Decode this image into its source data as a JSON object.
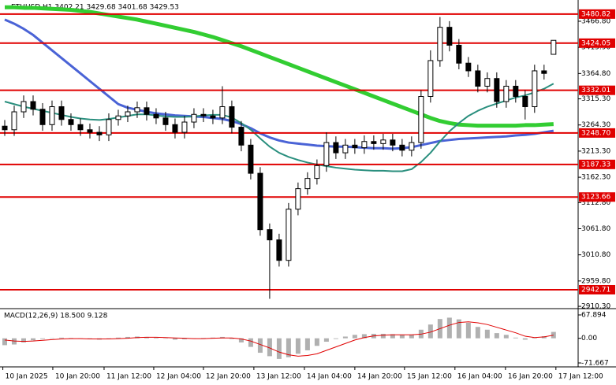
{
  "chart_data": {
    "type": "candlestick",
    "title": "ETHUSD,H1 3402.21 3429.68 3401.68 3429.53",
    "xlim": [
      -0.5,
      60.6
    ],
    "xticks": [
      {
        "value": -0.2,
        "label": "10 Jan 2025"
      },
      {
        "value": 5.08,
        "label": "10 Jan 20:00"
      },
      {
        "value": 10.5,
        "label": "11 Jan 12:00"
      },
      {
        "value": 15.75,
        "label": "12 Jan 04:00"
      },
      {
        "value": 21,
        "label": "12 Jan 20:00"
      },
      {
        "value": 26.33,
        "label": "13 Jan 12:00"
      },
      {
        "value": 31.67,
        "label": "14 Jan 04:00"
      },
      {
        "value": 37,
        "label": "14 Jan 20:00"
      },
      {
        "value": 42.25,
        "label": "15 Jan 12:00"
      },
      {
        "value": 47.58,
        "label": "16 Jan 04:00"
      },
      {
        "value": 52.92,
        "label": "16 Jan 20:00"
      },
      {
        "value": 58.25,
        "label": "17 Jan 12:00"
      }
    ],
    "ylim": [
      2905.8,
      3505.2
    ],
    "yticks": [
      {
        "value": 3466.8,
        "label": "3466.80"
      },
      {
        "value": 3415.9,
        "label": "3415.90"
      },
      {
        "value": 3364.8,
        "label": "3364.80"
      },
      {
        "value": 3315.3,
        "label": "3315.30"
      },
      {
        "value": 3264.3,
        "label": "3264.30"
      },
      {
        "value": 3213.3,
        "label": "3213.30"
      },
      {
        "value": 3162.3,
        "label": "3162.30"
      },
      {
        "value": 3112.8,
        "label": "3112.80"
      },
      {
        "value": 3061.8,
        "label": "3061.80"
      },
      {
        "value": 3010.8,
        "label": "3010.80"
      },
      {
        "value": 2959.8,
        "label": "2959.80"
      },
      {
        "value": 2910.3,
        "label": "2910.30"
      }
    ],
    "levels": [
      3480.82,
      3424.05,
      3332.01,
      {
        "value": 3248.7,
        "label": "3248.70"
      },
      3187.33,
      3123.66,
      2942.71
    ],
    "level_color": "#e00000",
    "up_color": "#ffffff",
    "down_color": "#000000",
    "open": [
      3262,
      3255,
      3290,
      3310,
      3295,
      3265,
      3300,
      3275,
      3265,
      3255,
      3250,
      3245,
      3275,
      3282,
      3290,
      3298,
      3285,
      3278,
      3265,
      3250,
      3270,
      3285,
      3282,
      3278,
      3300,
      3260,
      3225,
      3170,
      3060,
      3040,
      3000,
      3100,
      3140,
      3160,
      3185,
      3230,
      3210,
      3225,
      3220,
      3232,
      3228,
      3235,
      3225,
      3215,
      3230,
      3320,
      3390,
      3455,
      3420,
      3385,
      3370,
      3340,
      3355,
      3310,
      3340,
      3320,
      3300,
      3370,
      3402.21
    ],
    "high": [
      3274,
      3302,
      3322,
      3322,
      3307,
      3312,
      3312,
      3287,
      3277,
      3267,
      3262,
      3287,
      3294,
      3302,
      3310,
      3310,
      3297,
      3290,
      3277,
      3282,
      3297,
      3297,
      3294,
      3340,
      3312,
      3272,
      3237,
      3182,
      3072,
      3052,
      3112,
      3152,
      3172,
      3197,
      3250,
      3242,
      3237,
      3237,
      3244,
      3244,
      3247,
      3247,
      3237,
      3242,
      3332,
      3410,
      3475,
      3467,
      3432,
      3397,
      3382,
      3367,
      3367,
      3352,
      3352,
      3332,
      3382,
      3382,
      3429.68
    ],
    "low": [
      3243,
      3243,
      3278,
      3283,
      3253,
      3253,
      3263,
      3253,
      3243,
      3238,
      3233,
      3233,
      3263,
      3270,
      3278,
      3273,
      3266,
      3253,
      3238,
      3238,
      3258,
      3270,
      3266,
      3266,
      3248,
      3213,
      3158,
      3048,
      2925,
      2988,
      2988,
      3088,
      3128,
      3148,
      3173,
      3198,
      3198,
      3208,
      3208,
      3216,
      3216,
      3213,
      3203,
      3203,
      3218,
      3308,
      3378,
      3408,
      3373,
      3358,
      3328,
      3328,
      3298,
      3298,
      3308,
      3275,
      3288,
      3353,
      3401.68
    ],
    "close": [
      3255,
      3290,
      3310,
      3295,
      3265,
      3300,
      3275,
      3265,
      3255,
      3250,
      3245,
      3275,
      3282,
      3290,
      3298,
      3285,
      3278,
      3265,
      3250,
      3270,
      3285,
      3282,
      3278,
      3300,
      3260,
      3225,
      3170,
      3060,
      3040,
      3000,
      3100,
      3140,
      3160,
      3185,
      3230,
      3210,
      3225,
      3220,
      3232,
      3228,
      3235,
      3225,
      3215,
      3230,
      3320,
      3390,
      3455,
      3420,
      3385,
      3370,
      3340,
      3355,
      3310,
      3340,
      3320,
      3300,
      3370,
      3365,
      3429.53
    ],
    "moving_averages": [
      {
        "color": "#32cd32",
        "width": 5,
        "values": [
          3494,
          3494,
          3493,
          3493,
          3492,
          3491,
          3490,
          3489,
          3487,
          3485,
          3482,
          3479,
          3476,
          3473,
          3470,
          3466,
          3462,
          3458,
          3454,
          3450,
          3446,
          3441,
          3436,
          3430,
          3424,
          3418,
          3411,
          3404,
          3397,
          3390,
          3383,
          3376,
          3369,
          3362,
          3355,
          3348,
          3341,
          3334,
          3327,
          3320,
          3313,
          3306,
          3299,
          3292,
          3285,
          3278,
          3272,
          3268,
          3265,
          3264,
          3263,
          3263,
          3263,
          3263,
          3263,
          3264,
          3264,
          3265,
          3266
        ]
      },
      {
        "color": "#4a63d6",
        "width": 3,
        "values": [
          3470,
          3462,
          3452,
          3440,
          3425,
          3410,
          3395,
          3380,
          3365,
          3350,
          3335,
          3320,
          3305,
          3298,
          3294,
          3290,
          3287,
          3285,
          3283,
          3282,
          3281,
          3280,
          3278,
          3276,
          3272,
          3266,
          3258,
          3248,
          3240,
          3234,
          3230,
          3228,
          3226,
          3224,
          3223,
          3222,
          3222,
          3221,
          3220,
          3219,
          3219,
          3218,
          3219,
          3221,
          3225,
          3229,
          3233,
          3235,
          3237,
          3238,
          3239,
          3240,
          3241,
          3242,
          3244,
          3245,
          3247,
          3250,
          3253
        ]
      },
      {
        "color": "#2a8f7e",
        "width": 2,
        "values": [
          3310,
          3305,
          3300,
          3296,
          3292,
          3288,
          3284,
          3280,
          3277,
          3275,
          3274,
          3276,
          3279,
          3282,
          3285,
          3285,
          3283,
          3281,
          3280,
          3280,
          3281,
          3283,
          3284,
          3284,
          3279,
          3268,
          3255,
          3238,
          3222,
          3210,
          3202,
          3196,
          3191,
          3187,
          3184,
          3181,
          3179,
          3177,
          3176,
          3175,
          3175,
          3174,
          3174,
          3178,
          3192,
          3210,
          3232,
          3252,
          3268,
          3282,
          3292,
          3300,
          3306,
          3312,
          3318,
          3322,
          3328,
          3335,
          3345
        ]
      }
    ],
    "macd": {
      "title": "MACD(12,26,9) 18.500 9.128",
      "ylim": [
        -83.1,
        83.9
      ],
      "yticks": [
        67.894,
        {
          "value": 0,
          "label": "0.00"
        },
        -71.667
      ],
      "hist_color": "#b0b0b0",
      "signal_color": "#e00000",
      "histogram": [
        -20,
        -18,
        -12,
        -6,
        -2,
        1,
        2,
        1,
        -1,
        -3,
        -4,
        -2,
        2,
        4,
        5,
        4,
        2,
        -1,
        -4,
        -3,
        -1,
        1,
        2,
        4,
        -2,
        -12,
        -25,
        -42,
        -52,
        -60,
        -55,
        -45,
        -35,
        -22,
        -10,
        -2,
        5,
        10,
        12,
        13,
        13,
        12,
        10,
        10,
        25,
        40,
        56,
        60,
        55,
        45,
        33,
        25,
        15,
        10,
        2,
        -4,
        2,
        6,
        18.5
      ],
      "signal": [
        -5,
        -8,
        -9,
        -8,
        -6,
        -4,
        -2,
        -1,
        -1,
        -2,
        -2,
        -2,
        -1,
        0,
        2,
        3,
        3,
        2,
        1,
        0,
        -1,
        -1,
        0,
        1,
        1,
        -2,
        -8,
        -18,
        -28,
        -40,
        -48,
        -52,
        -50,
        -45,
        -35,
        -25,
        -15,
        -5,
        2,
        7,
        9,
        10,
        10,
        10,
        12,
        18,
        28,
        38,
        46,
        48,
        45,
        40,
        32,
        24,
        16,
        6,
        2,
        4,
        9.128
      ]
    }
  }
}
